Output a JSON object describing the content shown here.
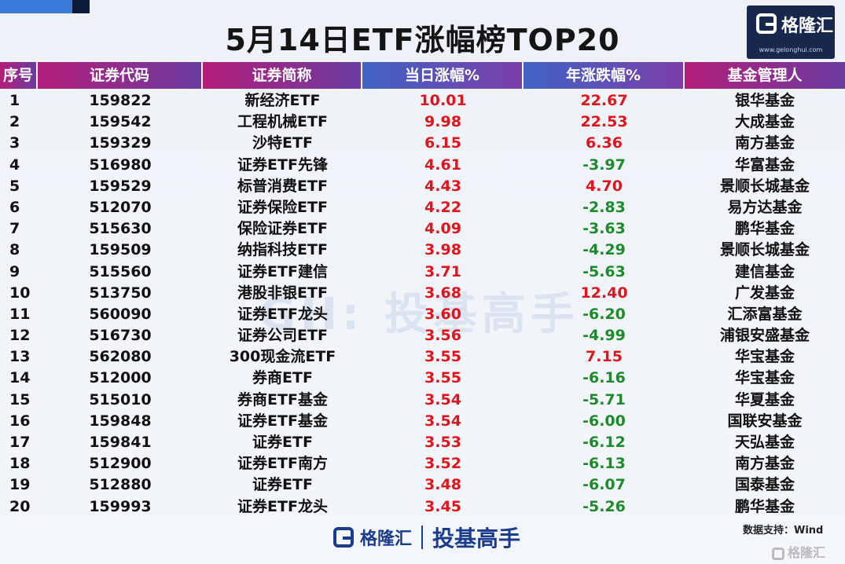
{
  "title": "5月14日ETF涨幅榜TOP20",
  "logo": {
    "name": "格隆汇",
    "url": "www.gelonghui.com"
  },
  "headers": [
    "序号",
    "证券代码",
    "证券简称",
    "当日涨幅%",
    "年涨跌幅%",
    "基金管理人"
  ],
  "rows": [
    {
      "rank": "1",
      "code": "159822",
      "name": "新经济ETF",
      "day": "10.01",
      "year": "22.67",
      "manager": "银华基金",
      "year_sign": "pos"
    },
    {
      "rank": "2",
      "code": "159542",
      "name": "工程机械ETF",
      "day": "9.98",
      "year": "22.53",
      "manager": "大成基金",
      "year_sign": "pos"
    },
    {
      "rank": "3",
      "code": "159329",
      "name": "沙特ETF",
      "day": "6.15",
      "year": "6.36",
      "manager": "南方基金",
      "year_sign": "pos"
    },
    {
      "rank": "4",
      "code": "516980",
      "name": "证券ETF先锋",
      "day": "4.61",
      "year": "-3.97",
      "manager": "华富基金",
      "year_sign": "neg"
    },
    {
      "rank": "5",
      "code": "159529",
      "name": "标普消费ETF",
      "day": "4.43",
      "year": "4.70",
      "manager": "景顺长城基金",
      "year_sign": "pos"
    },
    {
      "rank": "6",
      "code": "512070",
      "name": "证券保险ETF",
      "day": "4.22",
      "year": "-2.83",
      "manager": "易方达基金",
      "year_sign": "neg"
    },
    {
      "rank": "7",
      "code": "515630",
      "name": "保险证券ETF",
      "day": "4.09",
      "year": "-3.63",
      "manager": "鹏华基金",
      "year_sign": "neg"
    },
    {
      "rank": "8",
      "code": "159509",
      "name": "纳指科技ETF",
      "day": "3.98",
      "year": "-4.29",
      "manager": "景顺长城基金",
      "year_sign": "neg"
    },
    {
      "rank": "9",
      "code": "515560",
      "name": "证券ETF建信",
      "day": "3.71",
      "year": "-5.63",
      "manager": "建信基金",
      "year_sign": "neg"
    },
    {
      "rank": "10",
      "code": "513750",
      "name": "港股非银ETF",
      "day": "3.68",
      "year": "12.40",
      "manager": "广发基金",
      "year_sign": "pos"
    },
    {
      "rank": "11",
      "code": "560090",
      "name": "证券ETF龙头",
      "day": "3.60",
      "year": "-6.20",
      "manager": "汇添富基金",
      "year_sign": "neg"
    },
    {
      "rank": "12",
      "code": "516730",
      "name": "证券公司ETF",
      "day": "3.56",
      "year": "-4.99",
      "manager": "浦银安盛基金",
      "year_sign": "neg"
    },
    {
      "rank": "13",
      "code": "562080",
      "name": "300现金流ETF",
      "day": "3.55",
      "year": "7.15",
      "manager": "华宝基金",
      "year_sign": "pos"
    },
    {
      "rank": "14",
      "code": "512000",
      "name": "券商ETF",
      "day": "3.55",
      "year": "-6.16",
      "manager": "华宝基金",
      "year_sign": "neg"
    },
    {
      "rank": "15",
      "code": "515010",
      "name": "券商ETF基金",
      "day": "3.54",
      "year": "-5.71",
      "manager": "华夏基金",
      "year_sign": "neg"
    },
    {
      "rank": "16",
      "code": "159848",
      "name": "证券ETF基金",
      "day": "3.54",
      "year": "-6.00",
      "manager": "国联安基金",
      "year_sign": "neg"
    },
    {
      "rank": "17",
      "code": "159841",
      "name": "证券ETF",
      "day": "3.53",
      "year": "-6.12",
      "manager": "天弘基金",
      "year_sign": "neg"
    },
    {
      "rank": "18",
      "code": "512900",
      "name": "证券ETF南方",
      "day": "3.52",
      "year": "-6.13",
      "manager": "南方基金",
      "year_sign": "neg"
    },
    {
      "rank": "19",
      "code": "512880",
      "name": "证券ETF",
      "day": "3.48",
      "year": "-6.07",
      "manager": "国泰基金",
      "year_sign": "neg"
    },
    {
      "rank": "20",
      "code": "159993",
      "name": "证券ETF龙头",
      "day": "3.45",
      "year": "-5.26",
      "manager": "鹏华基金",
      "year_sign": "neg"
    }
  ],
  "watermark": "GH: 投基高手",
  "footer": {
    "brand": "格隆汇",
    "slogan": "投基高手",
    "source": "数据支持：Wind",
    "corner_mark": "格隆汇"
  },
  "colors": {
    "up": "#e0141e",
    "down": "#1d8a2c",
    "header_navy": "#17284c"
  }
}
